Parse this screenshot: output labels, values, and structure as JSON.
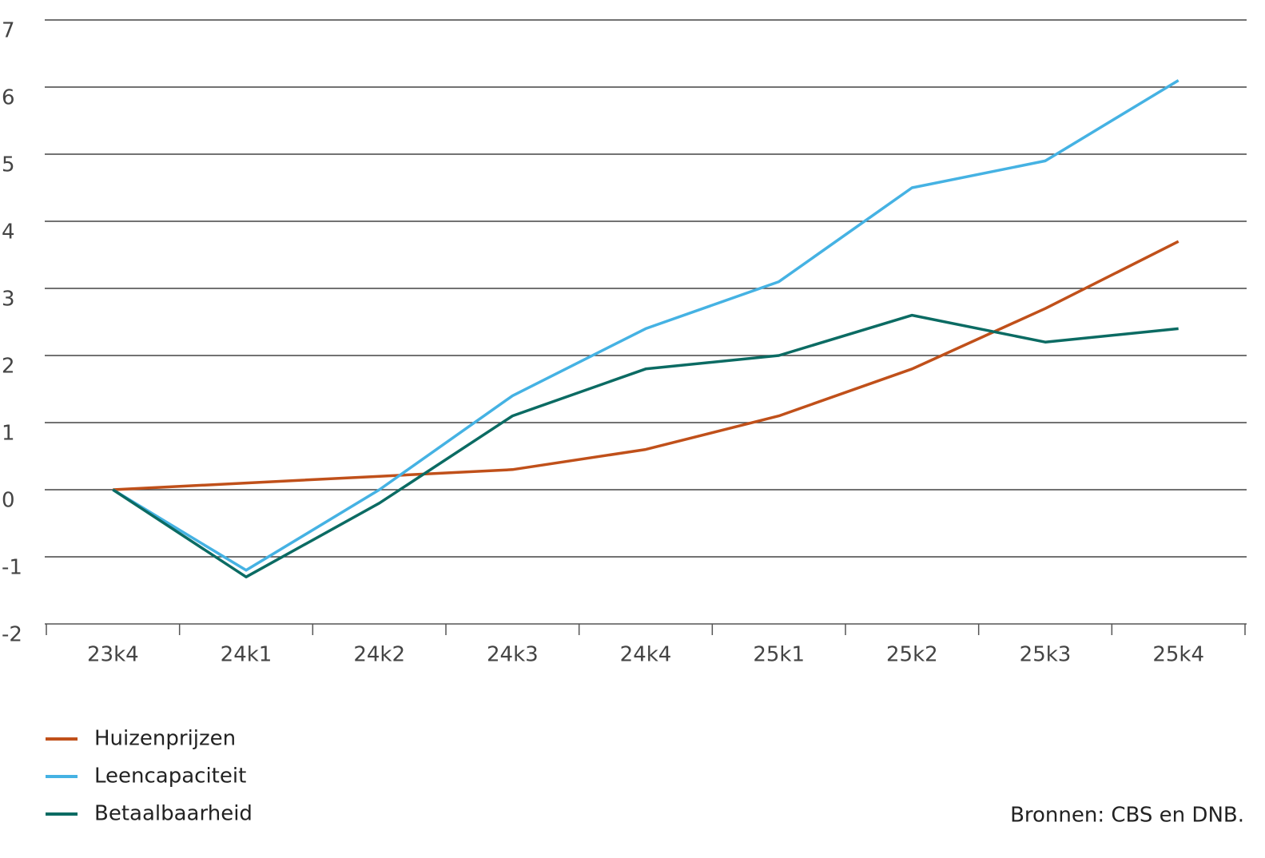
{
  "chart_data": {
    "type": "line",
    "categories": [
      "23k4",
      "24k1",
      "24k2",
      "24k3",
      "24k4",
      "25k1",
      "25k2",
      "25k3",
      "25k4"
    ],
    "series": [
      {
        "name": "Huizenprijzen",
        "color": "#c0501a",
        "values": [
          0,
          0.1,
          0.2,
          0.3,
          0.6,
          1.1,
          1.8,
          2.7,
          3.7
        ]
      },
      {
        "name": "Leencapaciteit",
        "color": "#45b2e3",
        "values": [
          0,
          -1.2,
          0,
          1.4,
          2.4,
          3.1,
          4.5,
          4.9,
          6.1
        ]
      },
      {
        "name": "Betaalbaarheid",
        "color": "#0b6b63",
        "values": [
          0,
          -1.3,
          -0.2,
          1.1,
          1.8,
          2.0,
          2.6,
          2.2,
          2.4
        ]
      }
    ],
    "ylim": [
      -2,
      7
    ],
    "yticks": [
      -2,
      -1,
      0,
      1,
      2,
      3,
      4,
      5,
      6,
      7
    ],
    "grid": true,
    "legend": "bottom-left",
    "source": "Bronnen: CBS en DNB."
  }
}
